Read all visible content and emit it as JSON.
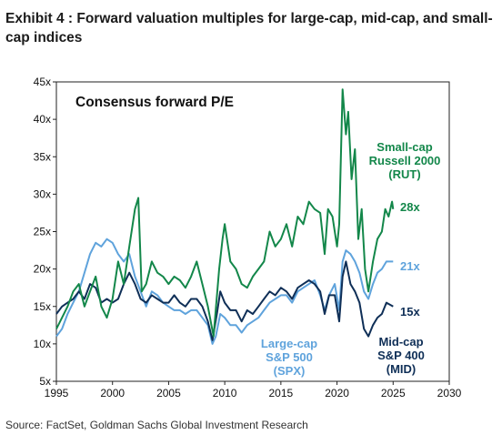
{
  "exhibit": {
    "title": "Exhibit 4 : Forward valuation multiples for large-cap, mid-cap, and small-cap indices",
    "source": "Source: FactSet, Goldman Sachs Global Investment Research"
  },
  "chart_data": {
    "type": "line",
    "title": "Consensus forward P/E",
    "xlabel": "",
    "ylabel": "",
    "xlim": [
      1995,
      2030
    ],
    "ylim": [
      5,
      45
    ],
    "x_ticks": [
      "1995",
      "2000",
      "2005",
      "2010",
      "2015",
      "2020",
      "2025",
      "2030"
    ],
    "y_ticks": [
      "5x",
      "10x",
      "15x",
      "20x",
      "25x",
      "30x",
      "35x",
      "40x",
      "45x"
    ],
    "grid": false,
    "series": [
      {
        "name": "Small-cap Russell 2000 (RUT)",
        "label_lines": [
          "Small-cap",
          "Russell 2000",
          "(RUT)"
        ],
        "end_label": "28x",
        "color": "#13874a",
        "points": [
          [
            1995.0,
            12
          ],
          [
            1995.5,
            13.5
          ],
          [
            1996.0,
            15
          ],
          [
            1996.5,
            17
          ],
          [
            1997.0,
            18
          ],
          [
            1997.5,
            15
          ],
          [
            1998.0,
            17
          ],
          [
            1998.5,
            19
          ],
          [
            1999.0,
            15
          ],
          [
            1999.5,
            13.5
          ],
          [
            2000.0,
            16
          ],
          [
            2000.5,
            21
          ],
          [
            2001.0,
            18
          ],
          [
            2001.5,
            23
          ],
          [
            2002.0,
            28
          ],
          [
            2002.3,
            29.5
          ],
          [
            2002.6,
            17
          ],
          [
            2003.0,
            18
          ],
          [
            2003.5,
            21
          ],
          [
            2004.0,
            19.5
          ],
          [
            2004.5,
            19
          ],
          [
            2005.0,
            18
          ],
          [
            2005.5,
            19
          ],
          [
            2006.0,
            18.5
          ],
          [
            2006.5,
            17.5
          ],
          [
            2007.0,
            19
          ],
          [
            2007.5,
            21
          ],
          [
            2008.0,
            18
          ],
          [
            2008.5,
            15
          ],
          [
            2009.0,
            11
          ],
          [
            2009.5,
            20
          ],
          [
            2009.8,
            24
          ],
          [
            2010.0,
            26
          ],
          [
            2010.5,
            21
          ],
          [
            2011.0,
            20
          ],
          [
            2011.5,
            18
          ],
          [
            2012.0,
            17.5
          ],
          [
            2012.5,
            19
          ],
          [
            2013.0,
            20
          ],
          [
            2013.5,
            21
          ],
          [
            2014.0,
            25
          ],
          [
            2014.5,
            23
          ],
          [
            2015.0,
            24
          ],
          [
            2015.5,
            26
          ],
          [
            2016.0,
            23
          ],
          [
            2016.5,
            27
          ],
          [
            2017.0,
            26
          ],
          [
            2017.5,
            29
          ],
          [
            2018.0,
            28
          ],
          [
            2018.5,
            27.5
          ],
          [
            2018.9,
            22
          ],
          [
            2019.2,
            28
          ],
          [
            2019.6,
            27
          ],
          [
            2020.0,
            23
          ],
          [
            2020.2,
            26
          ],
          [
            2020.5,
            44
          ],
          [
            2020.8,
            38
          ],
          [
            2021.0,
            41
          ],
          [
            2021.3,
            32
          ],
          [
            2021.6,
            36
          ],
          [
            2021.9,
            24
          ],
          [
            2022.2,
            28
          ],
          [
            2022.5,
            20
          ],
          [
            2022.8,
            17
          ],
          [
            2023.2,
            21
          ],
          [
            2023.6,
            24
          ],
          [
            2024.0,
            25
          ],
          [
            2024.3,
            28
          ],
          [
            2024.6,
            27
          ],
          [
            2024.9,
            29
          ],
          [
            2025.0,
            28
          ]
        ]
      },
      {
        "name": "Large-cap S&P 500 (SPX)",
        "label_lines": [
          "Large-cap",
          "S&P 500",
          "(SPX)"
        ],
        "end_label": "21x",
        "color": "#5fa3dc",
        "points": [
          [
            1995.0,
            11
          ],
          [
            1995.5,
            12
          ],
          [
            1996.0,
            14
          ],
          [
            1996.5,
            15.5
          ],
          [
            1997.0,
            17
          ],
          [
            1997.5,
            19.5
          ],
          [
            1998.0,
            22
          ],
          [
            1998.5,
            23.5
          ],
          [
            1999.0,
            23
          ],
          [
            1999.5,
            24
          ],
          [
            2000.0,
            23.5
          ],
          [
            2000.5,
            22
          ],
          [
            2001.0,
            21
          ],
          [
            2001.5,
            22
          ],
          [
            2002.0,
            19
          ],
          [
            2002.5,
            17
          ],
          [
            2003.0,
            15
          ],
          [
            2003.5,
            17
          ],
          [
            2004.0,
            16.5
          ],
          [
            2004.5,
            15.5
          ],
          [
            2005.0,
            15
          ],
          [
            2005.5,
            14.5
          ],
          [
            2006.0,
            14.5
          ],
          [
            2006.5,
            14
          ],
          [
            2007.0,
            14.5
          ],
          [
            2007.5,
            14.5
          ],
          [
            2008.0,
            13.5
          ],
          [
            2008.5,
            12.5
          ],
          [
            2008.9,
            10
          ],
          [
            2009.2,
            11
          ],
          [
            2009.6,
            14
          ],
          [
            2010.0,
            13.5
          ],
          [
            2010.5,
            12.5
          ],
          [
            2011.0,
            12.5
          ],
          [
            2011.5,
            11.5
          ],
          [
            2012.0,
            12.5
          ],
          [
            2012.5,
            13
          ],
          [
            2013.0,
            13.5
          ],
          [
            2013.5,
            14.5
          ],
          [
            2014.0,
            15.5
          ],
          [
            2014.5,
            16
          ],
          [
            2015.0,
            16.5
          ],
          [
            2015.5,
            16.5
          ],
          [
            2016.0,
            15.5
          ],
          [
            2016.5,
            17
          ],
          [
            2017.0,
            17.5
          ],
          [
            2017.5,
            18
          ],
          [
            2018.0,
            18.5
          ],
          [
            2018.5,
            16.5
          ],
          [
            2018.9,
            14.5
          ],
          [
            2019.3,
            16.5
          ],
          [
            2019.8,
            18
          ],
          [
            2020.2,
            14.5
          ],
          [
            2020.5,
            21
          ],
          [
            2020.8,
            22.5
          ],
          [
            2021.2,
            22
          ],
          [
            2021.6,
            21
          ],
          [
            2022.0,
            19.5
          ],
          [
            2022.4,
            17
          ],
          [
            2022.8,
            16
          ],
          [
            2023.2,
            18
          ],
          [
            2023.6,
            19.5
          ],
          [
            2024.0,
            20
          ],
          [
            2024.4,
            21
          ],
          [
            2025.0,
            21
          ]
        ]
      },
      {
        "name": "Mid-cap S&P 400 (MID)",
        "label_lines": [
          "Mid-cap",
          "S&P 400",
          "(MID)"
        ],
        "end_label": "15x",
        "color": "#0f2f57",
        "points": [
          [
            1995.0,
            14
          ],
          [
            1995.5,
            15
          ],
          [
            1996.0,
            15.5
          ],
          [
            1996.5,
            16
          ],
          [
            1997.0,
            17
          ],
          [
            1997.5,
            16
          ],
          [
            1998.0,
            18
          ],
          [
            1998.5,
            17.5
          ],
          [
            1999.0,
            15.5
          ],
          [
            1999.5,
            16
          ],
          [
            2000.0,
            15.5
          ],
          [
            2000.5,
            16
          ],
          [
            2001.0,
            18
          ],
          [
            2001.5,
            19.5
          ],
          [
            2002.0,
            18
          ],
          [
            2002.5,
            16
          ],
          [
            2003.0,
            15.5
          ],
          [
            2003.5,
            16.5
          ],
          [
            2004.0,
            16
          ],
          [
            2004.5,
            15.5
          ],
          [
            2005.0,
            15.5
          ],
          [
            2005.5,
            16.5
          ],
          [
            2006.0,
            15.5
          ],
          [
            2006.5,
            15
          ],
          [
            2007.0,
            16
          ],
          [
            2007.5,
            16
          ],
          [
            2008.0,
            15
          ],
          [
            2008.5,
            13
          ],
          [
            2008.9,
            10.5
          ],
          [
            2009.3,
            14
          ],
          [
            2009.6,
            17
          ],
          [
            2010.0,
            15.5
          ],
          [
            2010.5,
            14.5
          ],
          [
            2011.0,
            14.5
          ],
          [
            2011.5,
            13
          ],
          [
            2012.0,
            14.5
          ],
          [
            2012.5,
            14
          ],
          [
            2013.0,
            15
          ],
          [
            2013.5,
            16
          ],
          [
            2014.0,
            17
          ],
          [
            2014.5,
            16.5
          ],
          [
            2015.0,
            17.5
          ],
          [
            2015.5,
            17
          ],
          [
            2016.0,
            16
          ],
          [
            2016.5,
            17.5
          ],
          [
            2017.0,
            18
          ],
          [
            2017.5,
            18.5
          ],
          [
            2018.0,
            18
          ],
          [
            2018.5,
            17
          ],
          [
            2018.9,
            14
          ],
          [
            2019.3,
            16.5
          ],
          [
            2019.8,
            16.5
          ],
          [
            2020.2,
            13
          ],
          [
            2020.5,
            19
          ],
          [
            2020.8,
            21
          ],
          [
            2021.2,
            18
          ],
          [
            2021.6,
            17
          ],
          [
            2022.0,
            15.5
          ],
          [
            2022.4,
            12
          ],
          [
            2022.8,
            11
          ],
          [
            2023.2,
            12.5
          ],
          [
            2023.6,
            13.5
          ],
          [
            2024.0,
            14
          ],
          [
            2024.4,
            15.5
          ],
          [
            2025.0,
            15
          ]
        ]
      }
    ]
  }
}
